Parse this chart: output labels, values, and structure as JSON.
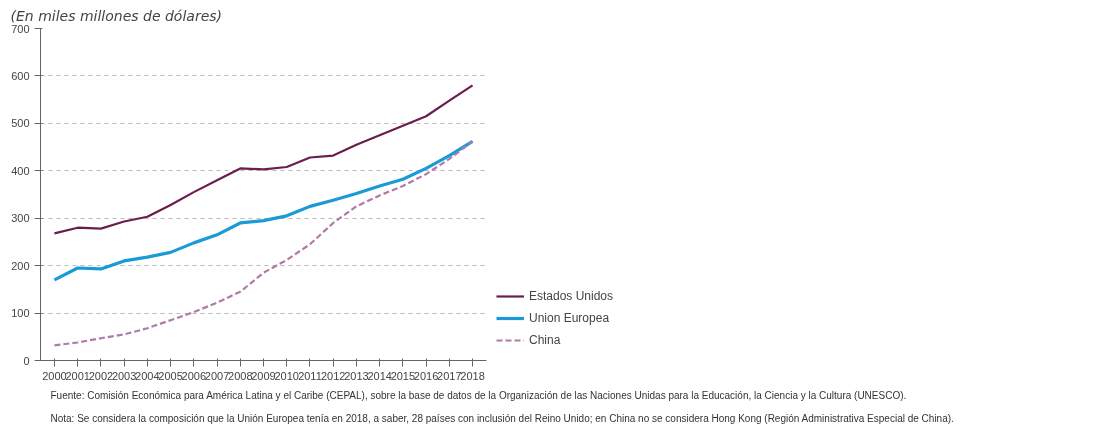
{
  "chart_data": {
    "type": "line",
    "subtitle": "(En miles millones de dólares)",
    "categories": [
      "2000",
      "2001",
      "2002",
      "2003",
      "2004",
      "2005",
      "2006",
      "2007",
      "2008",
      "2009",
      "2010",
      "2011",
      "2012",
      "2013",
      "2014",
      "2015",
      "2016",
      "2017",
      "2018"
    ],
    "series": [
      {
        "name": "Estados Unidos",
        "color": "#6b1e4e",
        "line_style": "solid",
        "values": [
          268,
          280,
          278,
          293,
          303,
          328,
          355,
          380,
          405,
          403,
          408,
          428,
          432,
          455,
          475,
          495,
          515,
          548,
          580
        ]
      },
      {
        "name": "Union Europea",
        "color": "#1a9ad6",
        "line_style": "solid",
        "values": [
          170,
          195,
          193,
          210,
          218,
          228,
          248,
          265,
          290,
          295,
          305,
          325,
          338,
          352,
          368,
          382,
          405,
          432,
          462
        ]
      },
      {
        "name": "China",
        "color": "#b07aa8",
        "line_style": "dashed",
        "values": [
          32,
          38,
          47,
          55,
          68,
          85,
          102,
          122,
          145,
          185,
          212,
          245,
          290,
          325,
          348,
          368,
          393,
          425,
          462
        ]
      }
    ],
    "ylim": [
      0,
      700
    ],
    "yticks": [
      0,
      100,
      200,
      300,
      400,
      500,
      600,
      700
    ],
    "grid": "y",
    "legend": "right",
    "annotations": [
      "Fuente: Comisión Económica para América Latina y el Caribe (CEPAL), sobre la base de datos de la Organización de las Naciones Unidas para la Educación, la Ciencia y la Cultura (UNESCO).",
      "Nota: Se considera la composición que la Unión Europea tenía en 2018, a saber, 28 países con inclusión del Reino Unido; en China no se considera Hong Kong (Región Administrativa Especial de China)."
    ]
  }
}
